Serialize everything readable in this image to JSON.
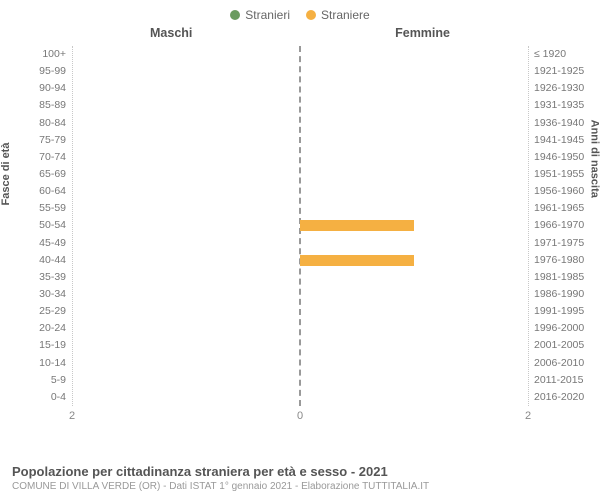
{
  "legend": [
    {
      "label": "Stranieri",
      "color": "#6a9b5f"
    },
    {
      "label": "Straniere",
      "color": "#f5b042"
    }
  ],
  "columns": {
    "left": "Maschi",
    "right": "Femmine"
  },
  "axis_titles": {
    "left": "Fasce di età",
    "right": "Anni di nascita"
  },
  "xmax": 2,
  "xticks": [
    2,
    0,
    2
  ],
  "age_rows": [
    {
      "age": "100+",
      "birth": "≤ 1920",
      "m": 0,
      "f": 0
    },
    {
      "age": "95-99",
      "birth": "1921-1925",
      "m": 0,
      "f": 0
    },
    {
      "age": "90-94",
      "birth": "1926-1930",
      "m": 0,
      "f": 0
    },
    {
      "age": "85-89",
      "birth": "1931-1935",
      "m": 0,
      "f": 0
    },
    {
      "age": "80-84",
      "birth": "1936-1940",
      "m": 0,
      "f": 0
    },
    {
      "age": "75-79",
      "birth": "1941-1945",
      "m": 0,
      "f": 0
    },
    {
      "age": "70-74",
      "birth": "1946-1950",
      "m": 0,
      "f": 0
    },
    {
      "age": "65-69",
      "birth": "1951-1955",
      "m": 0,
      "f": 0
    },
    {
      "age": "60-64",
      "birth": "1956-1960",
      "m": 0,
      "f": 0
    },
    {
      "age": "55-59",
      "birth": "1961-1965",
      "m": 0,
      "f": 0
    },
    {
      "age": "50-54",
      "birth": "1966-1970",
      "m": 0,
      "f": 1
    },
    {
      "age": "45-49",
      "birth": "1971-1975",
      "m": 0,
      "f": 0
    },
    {
      "age": "40-44",
      "birth": "1976-1980",
      "m": 0,
      "f": 1
    },
    {
      "age": "35-39",
      "birth": "1981-1985",
      "m": 0,
      "f": 0
    },
    {
      "age": "30-34",
      "birth": "1986-1990",
      "m": 0,
      "f": 0
    },
    {
      "age": "25-29",
      "birth": "1991-1995",
      "m": 0,
      "f": 0
    },
    {
      "age": "20-24",
      "birth": "1996-2000",
      "m": 0,
      "f": 0
    },
    {
      "age": "15-19",
      "birth": "2001-2005",
      "m": 0,
      "f": 0
    },
    {
      "age": "10-14",
      "birth": "2006-2010",
      "m": 0,
      "f": 0
    },
    {
      "age": "5-9",
      "birth": "2011-2015",
      "m": 0,
      "f": 0
    },
    {
      "age": "0-4",
      "birth": "2016-2020",
      "m": 0,
      "f": 0
    }
  ],
  "colors": {
    "male_bar": "#6a9b5f",
    "female_bar": "#f5b042",
    "grid": "#c8c8c8",
    "center": "#999999",
    "bg": "#ffffff"
  },
  "footer": {
    "title": "Popolazione per cittadinanza straniera per età e sesso - 2021",
    "sub": "COMUNE DI VILLA VERDE (OR) - Dati ISTAT 1° gennaio 2021 - Elaborazione TUTTITALIA.IT"
  }
}
